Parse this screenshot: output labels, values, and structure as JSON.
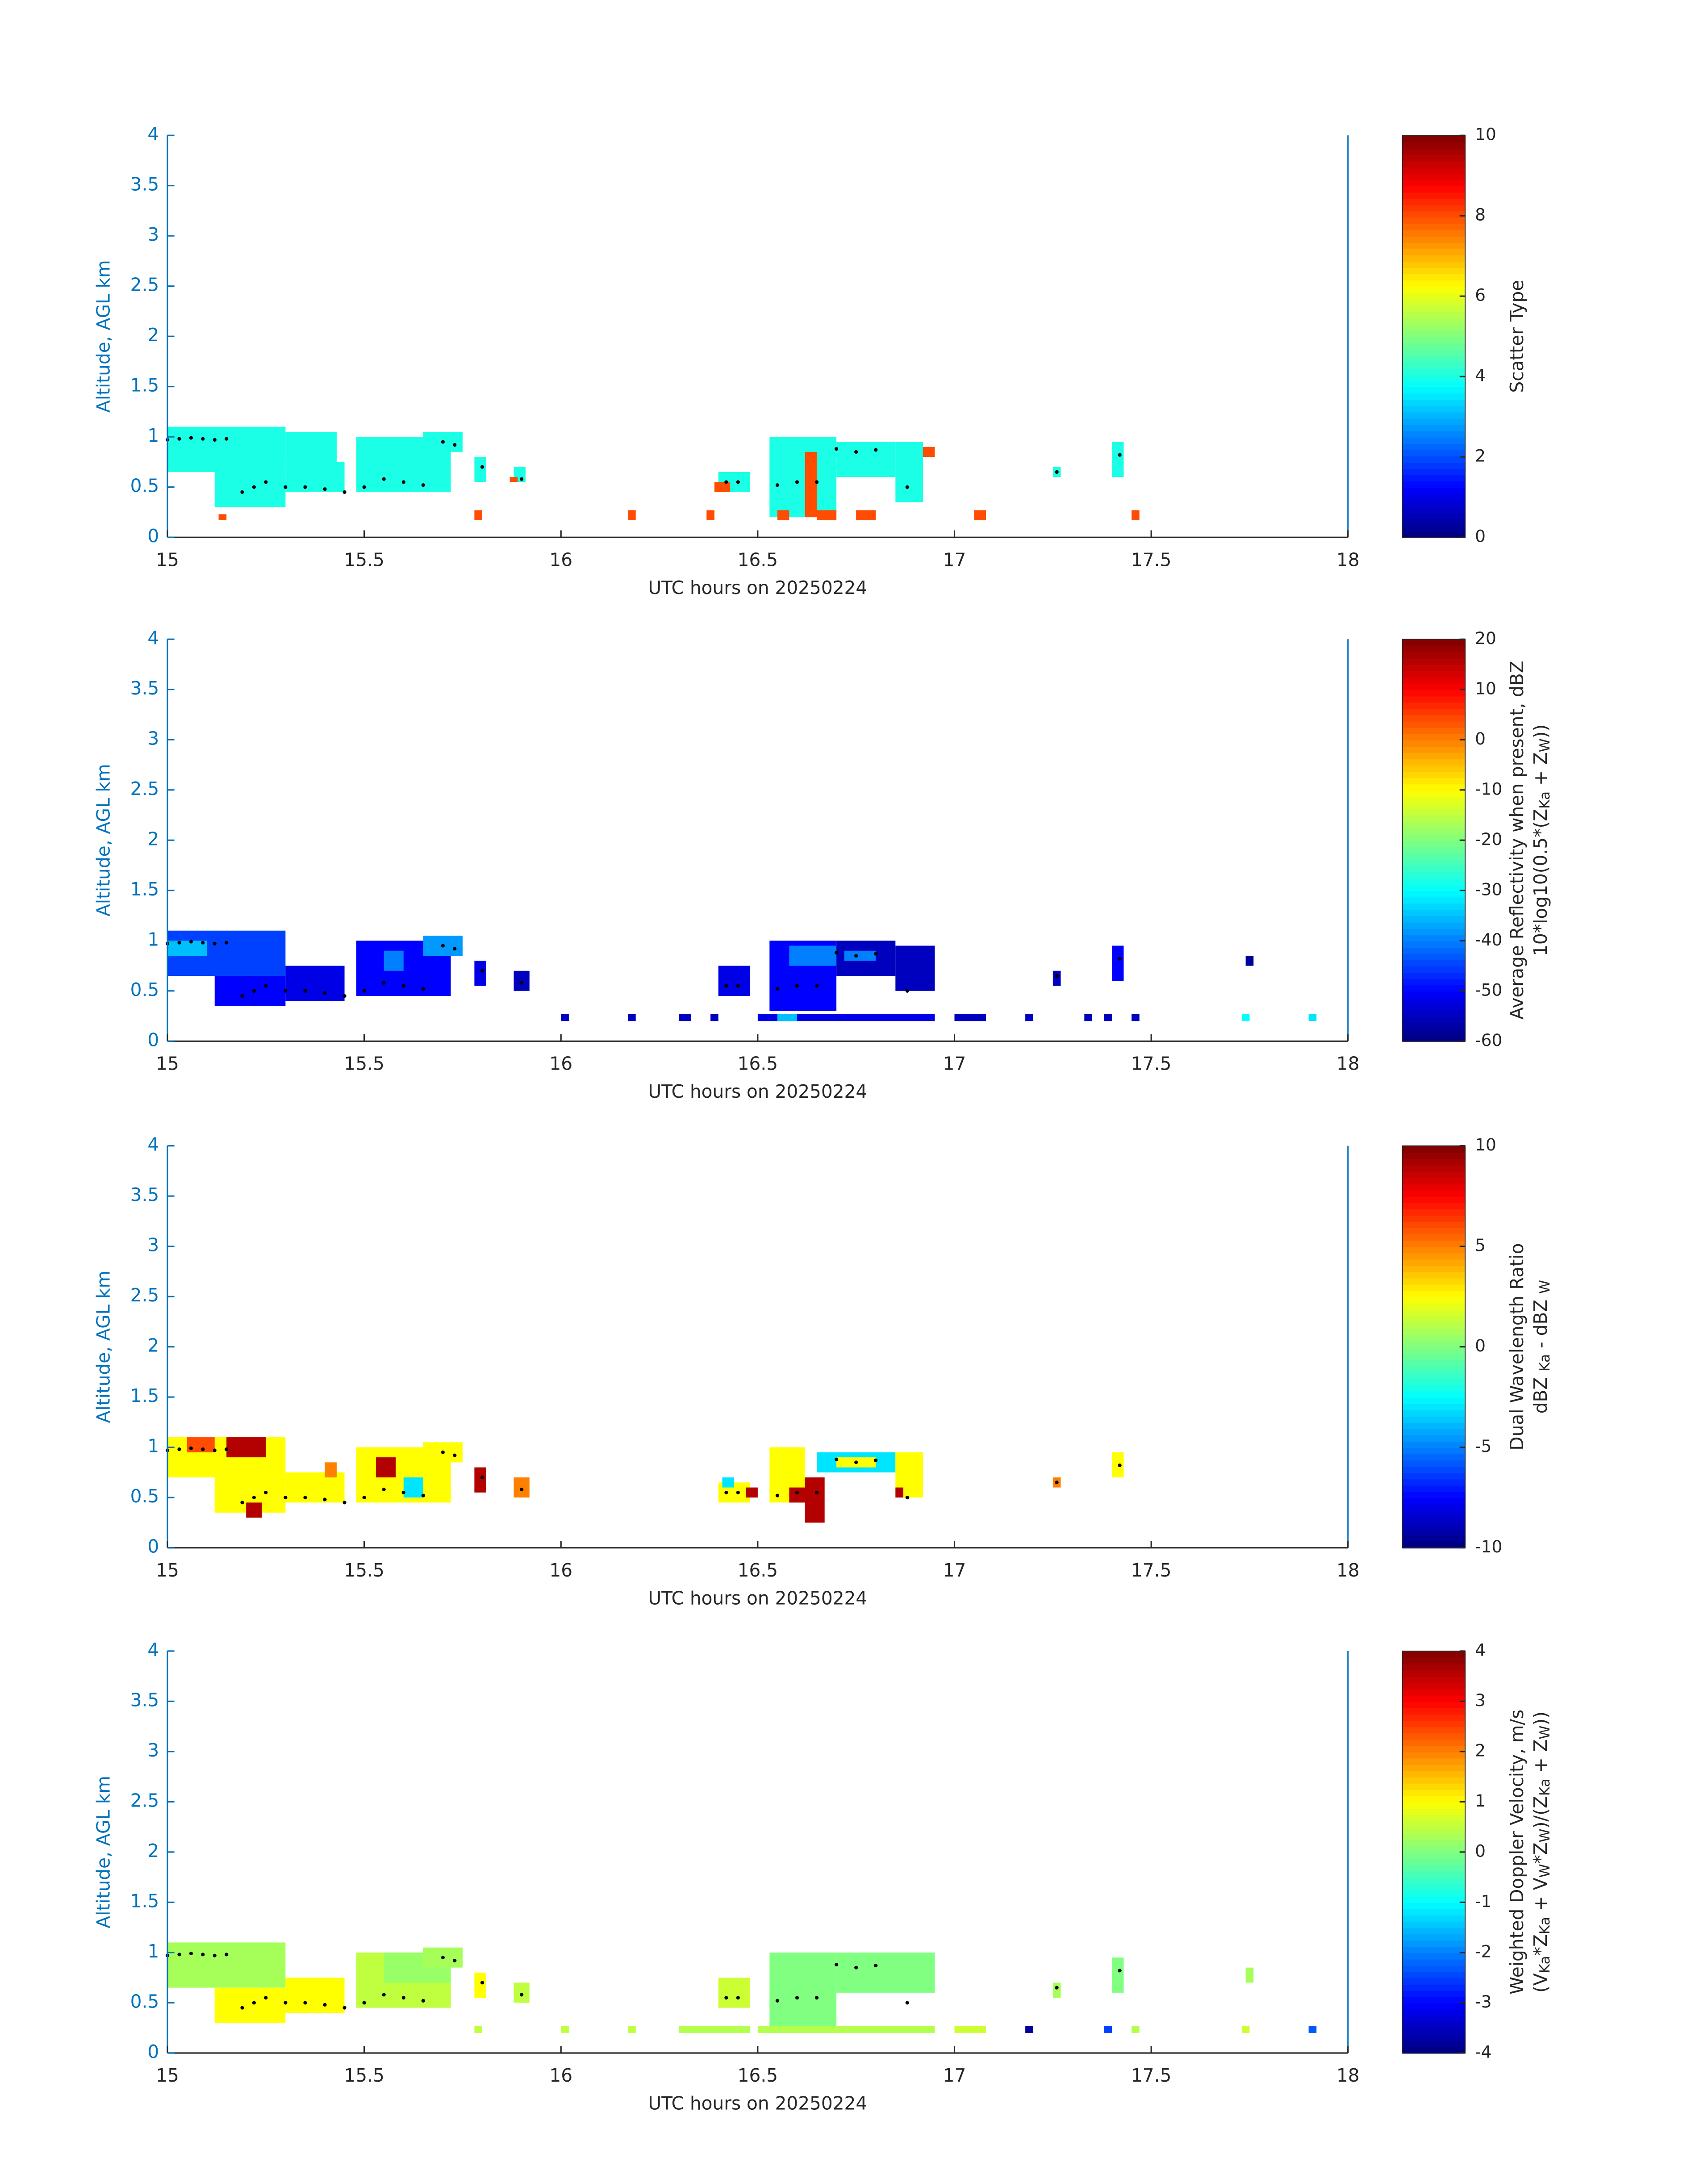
{
  "chart_data": [
    {
      "type": "heatmap",
      "colormap": "jet",
      "xlabel": "UTC hours on 20250224",
      "ylabel": "Altitude, AGL km",
      "xlim": [
        15,
        18
      ],
      "ylim": [
        0,
        4
      ],
      "xticks": [
        15,
        15.5,
        16,
        16.5,
        17,
        17.5,
        18
      ],
      "yticks": [
        0,
        0.5,
        1,
        1.5,
        2,
        2.5,
        3,
        3.5,
        4
      ],
      "clim": [
        0,
        10
      ],
      "cticks": [
        0,
        2,
        4,
        6,
        8,
        10
      ],
      "colorbar_label": [
        "Scatter Type"
      ],
      "cells": [
        [
          15.0,
          15.3,
          0.65,
          1.1,
          4
        ],
        [
          15.12,
          15.3,
          0.3,
          0.65,
          4
        ],
        [
          15.3,
          15.45,
          0.45,
          0.75,
          4
        ],
        [
          15.3,
          15.43,
          0.75,
          1.05,
          4
        ],
        [
          15.48,
          15.72,
          0.45,
          1.0,
          4
        ],
        [
          15.65,
          15.75,
          0.85,
          1.05,
          4
        ],
        [
          15.78,
          15.81,
          0.55,
          0.8,
          4
        ],
        [
          15.88,
          15.91,
          0.55,
          0.7,
          4
        ],
        [
          15.87,
          15.89,
          0.55,
          0.6,
          8
        ],
        [
          15.13,
          15.15,
          0.17,
          0.23,
          8
        ],
        [
          15.78,
          15.8,
          0.17,
          0.27,
          8
        ],
        [
          16.17,
          16.19,
          0.17,
          0.27,
          8
        ],
        [
          16.37,
          16.39,
          0.17,
          0.27,
          8
        ],
        [
          16.4,
          16.48,
          0.45,
          0.65,
          4
        ],
        [
          16.39,
          16.43,
          0.45,
          0.55,
          8
        ],
        [
          16.53,
          16.7,
          0.2,
          1.0,
          4
        ],
        [
          16.7,
          16.85,
          0.6,
          0.95,
          4
        ],
        [
          16.62,
          16.65,
          0.2,
          0.85,
          8
        ],
        [
          16.55,
          16.58,
          0.17,
          0.27,
          8
        ],
        [
          16.85,
          16.92,
          0.35,
          0.95,
          4
        ],
        [
          16.92,
          16.95,
          0.8,
          0.9,
          8
        ],
        [
          17.05,
          17.08,
          0.17,
          0.27,
          8
        ],
        [
          17.25,
          17.27,
          0.6,
          0.7,
          4
        ],
        [
          17.4,
          17.43,
          0.6,
          0.95,
          4
        ],
        [
          17.45,
          17.47,
          0.17,
          0.27,
          8
        ],
        [
          16.65,
          16.7,
          0.17,
          0.27,
          8
        ],
        [
          16.75,
          16.8,
          0.17,
          0.27,
          8
        ]
      ],
      "markers": {
        "x": [
          15.0,
          15.03,
          15.06,
          15.09,
          15.12,
          15.15,
          15.19,
          15.22,
          15.25,
          15.3,
          15.35,
          15.4,
          15.45,
          15.5,
          15.55,
          15.6,
          15.65,
          15.7,
          15.73,
          15.8,
          15.9,
          16.42,
          16.45,
          16.55,
          16.6,
          16.65,
          16.7,
          16.75,
          16.8,
          16.88,
          17.26,
          17.42
        ],
        "y": [
          0.97,
          0.98,
          0.99,
          0.98,
          0.97,
          0.98,
          0.45,
          0.5,
          0.55,
          0.5,
          0.5,
          0.48,
          0.45,
          0.5,
          0.58,
          0.55,
          0.52,
          0.95,
          0.92,
          0.7,
          0.58,
          0.55,
          0.55,
          0.52,
          0.55,
          0.55,
          0.88,
          0.85,
          0.87,
          0.5,
          0.65,
          0.82
        ]
      }
    },
    {
      "type": "heatmap",
      "colormap": "jet",
      "xlabel": "UTC hours on 20250224",
      "ylabel": "Altitude, AGL km",
      "xlim": [
        15,
        18
      ],
      "ylim": [
        0,
        4
      ],
      "xticks": [
        15,
        15.5,
        16,
        16.5,
        17,
        17.5,
        18
      ],
      "yticks": [
        0,
        0.5,
        1,
        1.5,
        2,
        2.5,
        3,
        3.5,
        4
      ],
      "clim": [
        -60,
        20
      ],
      "cticks": [
        -60,
        -50,
        -40,
        -30,
        -20,
        -10,
        0,
        10,
        20
      ],
      "colorbar_label": [
        "Average Reflectivity when present, dBZ",
        [
          "10*log10(0.5*(Z",
          "Ka",
          " + Z",
          "W",
          "))"
        ]
      ],
      "cells": [
        [
          15.0,
          15.3,
          0.65,
          1.1,
          -45
        ],
        [
          15.0,
          15.1,
          0.85,
          1.0,
          -35
        ],
        [
          15.12,
          15.3,
          0.35,
          0.65,
          -50
        ],
        [
          15.3,
          15.45,
          0.4,
          0.75,
          -52
        ],
        [
          15.48,
          15.72,
          0.45,
          1.0,
          -50
        ],
        [
          15.55,
          15.6,
          0.7,
          0.9,
          -40
        ],
        [
          15.65,
          15.75,
          0.85,
          1.05,
          -38
        ],
        [
          15.78,
          15.81,
          0.55,
          0.8,
          -52
        ],
        [
          15.88,
          15.92,
          0.5,
          0.7,
          -55
        ],
        [
          16.0,
          16.02,
          0.2,
          0.27,
          -55
        ],
        [
          16.17,
          16.19,
          0.2,
          0.27,
          -55
        ],
        [
          16.3,
          16.33,
          0.2,
          0.27,
          -55
        ],
        [
          16.38,
          16.4,
          0.2,
          0.27,
          -55
        ],
        [
          16.4,
          16.48,
          0.45,
          0.75,
          -52
        ],
        [
          16.53,
          16.7,
          0.3,
          1.0,
          -50
        ],
        [
          16.58,
          16.7,
          0.75,
          0.95,
          -40
        ],
        [
          16.7,
          16.85,
          0.65,
          1.0,
          -55
        ],
        [
          16.72,
          16.8,
          0.8,
          0.9,
          -40
        ],
        [
          16.85,
          16.95,
          0.5,
          0.95,
          -55
        ],
        [
          16.5,
          16.95,
          0.2,
          0.27,
          -52
        ],
        [
          16.55,
          16.6,
          0.2,
          0.27,
          -35
        ],
        [
          17.0,
          17.08,
          0.2,
          0.27,
          -55
        ],
        [
          17.18,
          17.2,
          0.2,
          0.27,
          -55
        ],
        [
          17.25,
          17.27,
          0.55,
          0.7,
          -55
        ],
        [
          17.33,
          17.35,
          0.2,
          0.27,
          -55
        ],
        [
          17.38,
          17.4,
          0.2,
          0.27,
          -55
        ],
        [
          17.4,
          17.43,
          0.6,
          0.95,
          -50
        ],
        [
          17.45,
          17.47,
          0.2,
          0.27,
          -55
        ],
        [
          17.73,
          17.75,
          0.2,
          0.27,
          -30
        ],
        [
          17.74,
          17.76,
          0.75,
          0.85,
          -58
        ],
        [
          17.9,
          17.92,
          0.2,
          0.27,
          -32
        ]
      ],
      "markers": {
        "x": [
          15.0,
          15.03,
          15.06,
          15.09,
          15.12,
          15.15,
          15.19,
          15.22,
          15.25,
          15.3,
          15.35,
          15.4,
          15.45,
          15.5,
          15.55,
          15.6,
          15.65,
          15.7,
          15.73,
          15.8,
          15.9,
          16.42,
          16.45,
          16.55,
          16.6,
          16.65,
          16.7,
          16.75,
          16.8,
          16.88,
          17.26,
          17.42
        ],
        "y": [
          0.97,
          0.98,
          0.99,
          0.98,
          0.97,
          0.98,
          0.45,
          0.5,
          0.55,
          0.5,
          0.5,
          0.48,
          0.45,
          0.5,
          0.58,
          0.55,
          0.52,
          0.95,
          0.92,
          0.7,
          0.58,
          0.55,
          0.55,
          0.52,
          0.55,
          0.55,
          0.88,
          0.85,
          0.87,
          0.5,
          0.65,
          0.82
        ]
      }
    },
    {
      "type": "heatmap",
      "colormap": "jet",
      "xlabel": "UTC hours on 20250224",
      "ylabel": "Altitude, AGL km",
      "xlim": [
        15,
        18
      ],
      "ylim": [
        0,
        4
      ],
      "xticks": [
        15,
        15.5,
        16,
        16.5,
        17,
        17.5,
        18
      ],
      "yticks": [
        0,
        0.5,
        1,
        1.5,
        2,
        2.5,
        3,
        3.5,
        4
      ],
      "clim": [
        -10,
        10
      ],
      "cticks": [
        -10,
        -5,
        0,
        5,
        10
      ],
      "colorbar_label": [
        "Dual Wavelength Ratio",
        [
          "dBZ ",
          "Ka",
          " - dBZ ",
          "W"
        ]
      ],
      "cells": [
        [
          15.0,
          15.3,
          0.7,
          1.1,
          2.5
        ],
        [
          15.05,
          15.12,
          0.95,
          1.1,
          6
        ],
        [
          15.15,
          15.25,
          0.9,
          1.1,
          9
        ],
        [
          15.12,
          15.3,
          0.35,
          0.7,
          2.5
        ],
        [
          15.2,
          15.24,
          0.3,
          0.45,
          9
        ],
        [
          15.3,
          15.45,
          0.45,
          0.75,
          2.5
        ],
        [
          15.4,
          15.43,
          0.7,
          0.85,
          5
        ],
        [
          15.48,
          15.72,
          0.45,
          1.0,
          2.5
        ],
        [
          15.53,
          15.58,
          0.7,
          0.9,
          9
        ],
        [
          15.6,
          15.65,
          0.5,
          0.7,
          -3
        ],
        [
          15.65,
          15.75,
          0.85,
          1.05,
          2.5
        ],
        [
          15.78,
          15.81,
          0.55,
          0.8,
          9
        ],
        [
          15.88,
          15.92,
          0.5,
          0.7,
          5
        ],
        [
          16.4,
          16.48,
          0.45,
          0.65,
          2.5
        ],
        [
          16.41,
          16.44,
          0.6,
          0.7,
          -3
        ],
        [
          16.47,
          16.5,
          0.5,
          0.6,
          9
        ],
        [
          16.53,
          16.62,
          0.45,
          1.0,
          2.5
        ],
        [
          16.58,
          16.62,
          0.45,
          0.6,
          9
        ],
        [
          16.62,
          16.67,
          0.25,
          0.7,
          9
        ],
        [
          16.65,
          16.85,
          0.75,
          0.95,
          -3
        ],
        [
          16.7,
          16.8,
          0.8,
          0.9,
          2.5
        ],
        [
          16.85,
          16.92,
          0.5,
          0.95,
          2.5
        ],
        [
          16.85,
          16.87,
          0.5,
          0.6,
          9
        ],
        [
          17.25,
          17.27,
          0.6,
          0.7,
          5
        ],
        [
          17.4,
          17.43,
          0.7,
          0.95,
          2.5
        ]
      ],
      "markers": {
        "x": [
          15.0,
          15.03,
          15.06,
          15.09,
          15.12,
          15.15,
          15.19,
          15.22,
          15.25,
          15.3,
          15.35,
          15.4,
          15.45,
          15.5,
          15.55,
          15.6,
          15.65,
          15.7,
          15.73,
          15.8,
          15.9,
          16.42,
          16.45,
          16.55,
          16.6,
          16.65,
          16.7,
          16.75,
          16.8,
          16.88,
          17.26,
          17.42
        ],
        "y": [
          0.97,
          0.98,
          0.99,
          0.98,
          0.97,
          0.98,
          0.45,
          0.5,
          0.55,
          0.5,
          0.5,
          0.48,
          0.45,
          0.5,
          0.58,
          0.55,
          0.52,
          0.95,
          0.92,
          0.7,
          0.58,
          0.55,
          0.55,
          0.52,
          0.55,
          0.55,
          0.88,
          0.85,
          0.87,
          0.5,
          0.65,
          0.82
        ]
      }
    },
    {
      "type": "heatmap",
      "colormap": "jet",
      "xlabel": "UTC hours on 20250224",
      "ylabel": "Altitude, AGL km",
      "xlim": [
        15,
        18
      ],
      "ylim": [
        0,
        4
      ],
      "xticks": [
        15,
        15.5,
        16,
        16.5,
        17,
        17.5,
        18
      ],
      "yticks": [
        0,
        0.5,
        1,
        1.5,
        2,
        2.5,
        3,
        3.5,
        4
      ],
      "clim": [
        -4,
        4
      ],
      "cticks": [
        -4,
        -3,
        -2,
        -1,
        0,
        1,
        2,
        3,
        4
      ],
      "colorbar_label": [
        "Weighted Doppler Velocity, m/s",
        [
          "(V",
          "Ka",
          "*Z",
          "Ka",
          " + V",
          "W",
          "*Z",
          "W",
          ")/(Z",
          "Ka",
          " + Z",
          "W",
          "))"
        ]
      ],
      "cells": [
        [
          15.0,
          15.3,
          0.65,
          1.1,
          0.3
        ],
        [
          15.12,
          15.3,
          0.3,
          0.65,
          1
        ],
        [
          15.3,
          15.45,
          0.4,
          0.75,
          1
        ],
        [
          15.48,
          15.72,
          0.45,
          1.0,
          0.5
        ],
        [
          15.55,
          15.72,
          0.7,
          1.0,
          0.2
        ],
        [
          15.65,
          15.75,
          0.85,
          1.05,
          0.3
        ],
        [
          15.78,
          15.81,
          0.55,
          0.8,
          1
        ],
        [
          15.88,
          15.92,
          0.5,
          0.7,
          0.5
        ],
        [
          15.78,
          15.8,
          0.2,
          0.27,
          0.5
        ],
        [
          16.0,
          16.02,
          0.2,
          0.27,
          0.5
        ],
        [
          16.17,
          16.19,
          0.2,
          0.27,
          0.5
        ],
        [
          16.3,
          16.48,
          0.2,
          0.27,
          0.4
        ],
        [
          16.4,
          16.48,
          0.45,
          0.75,
          0.6
        ],
        [
          16.53,
          16.7,
          0.2,
          1.0,
          0
        ],
        [
          16.7,
          16.95,
          0.6,
          1.0,
          0
        ],
        [
          16.5,
          16.95,
          0.2,
          0.27,
          0.4
        ],
        [
          17.0,
          17.08,
          0.2,
          0.27,
          0.6
        ],
        [
          17.18,
          17.2,
          0.2,
          0.27,
          -3.8
        ],
        [
          17.25,
          17.27,
          0.55,
          0.7,
          0.3
        ],
        [
          17.38,
          17.4,
          0.2,
          0.27,
          -2.5
        ],
        [
          17.4,
          17.43,
          0.6,
          0.95,
          0
        ],
        [
          17.45,
          17.47,
          0.2,
          0.27,
          0.4
        ],
        [
          17.73,
          17.75,
          0.2,
          0.27,
          0.6
        ],
        [
          17.74,
          17.76,
          0.7,
          0.85,
          0.3
        ],
        [
          17.9,
          17.92,
          0.2,
          0.27,
          -2.3
        ]
      ],
      "markers": {
        "x": [
          15.0,
          15.03,
          15.06,
          15.09,
          15.12,
          15.15,
          15.19,
          15.22,
          15.25,
          15.3,
          15.35,
          15.4,
          15.45,
          15.5,
          15.55,
          15.6,
          15.65,
          15.7,
          15.73,
          15.8,
          15.9,
          16.42,
          16.45,
          16.55,
          16.6,
          16.65,
          16.7,
          16.75,
          16.8,
          16.88,
          17.26,
          17.42
        ],
        "y": [
          0.97,
          0.98,
          0.99,
          0.98,
          0.97,
          0.98,
          0.45,
          0.5,
          0.55,
          0.5,
          0.5,
          0.48,
          0.45,
          0.5,
          0.58,
          0.55,
          0.52,
          0.95,
          0.92,
          0.7,
          0.58,
          0.55,
          0.55,
          0.52,
          0.55,
          0.55,
          0.88,
          0.85,
          0.87,
          0.5,
          0.65,
          0.82
        ]
      }
    }
  ]
}
